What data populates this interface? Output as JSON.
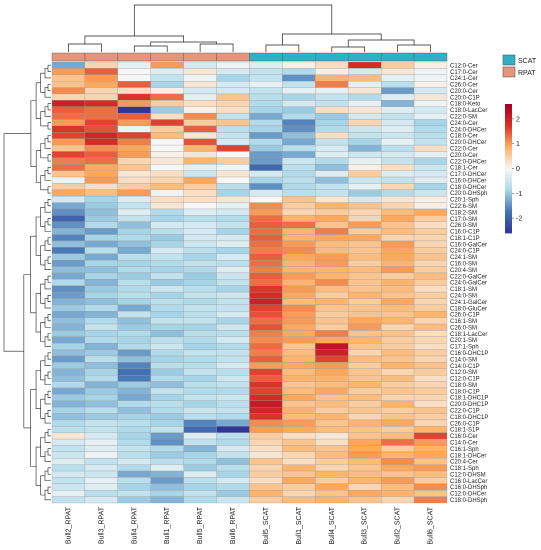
{
  "chart_data": {
    "type": "heatmap",
    "columns": [
      "Bull2_RPAT",
      "Bull3_RPAT",
      "Bull4_RPAT",
      "Bull1_RPAT",
      "Bull5_RPAT",
      "Bull6_RPAT",
      "Bull5_SCAT",
      "Bull1_SCAT",
      "Bull4_SCAT",
      "Bull3_SCAT",
      "Bull2_SCAT",
      "Bull6_SCAT"
    ],
    "column_groups": [
      "RPAT",
      "RPAT",
      "RPAT",
      "RPAT",
      "RPAT",
      "RPAT",
      "SCAT",
      "SCAT",
      "SCAT",
      "SCAT",
      "SCAT",
      "SCAT"
    ],
    "rows": [
      "C12:0-Cer",
      "C17:0-Cer",
      "C24:1-Cer",
      "C26:0-Cer",
      "C20:0-Cer",
      "C20:0-C1P",
      "C18:0-Keto",
      "C18:0-LacCer",
      "C22:0-SM",
      "C24:0-Cer",
      "C24:0-DHCer",
      "C18:0-Cer",
      "C20:0-DHCer",
      "C22:0-Cer",
      "C20:0-Cer",
      "C22:0-DHCer",
      "C18:1-Cer",
      "C17:0-DHCer",
      "C16:0-DHCer",
      "C18:0-DHCer",
      "C20:0-DHSph",
      "C20:1-Sph",
      "C22:6-SM",
      "C18:2-SM",
      "C17:0-SM",
      "C26:0-SM",
      "C16:0-C1P",
      "C18:1-C1P",
      "C16:0-GalCer",
      "C24:0-C1P",
      "C24:1-SM",
      "C16:0-SM",
      "C20:4-SM",
      "C22:0-GalCer",
      "C24:0-GalCer",
      "C18:1-SM",
      "C24:0-SM",
      "C24:1-GalCer",
      "C18:0-GluCer",
      "C26:0-C1P",
      "C16:1-SM",
      "C26:0-SM",
      "C18:1-LacCer",
      "C20:1-SM",
      "C17:1-Sph",
      "C16:0-DHC1P",
      "C14:0-SM",
      "C14:0-C1P",
      "C12:0-SM",
      "C12:0-C1P",
      "C18:0-SM",
      "C18:0-C1P",
      "C18:1-DHC1P",
      "C20:0-DHC1P",
      "C22:0-C1P",
      "C18:0-DHC1P",
      "C26:0-C1P",
      "C18:1-S1P",
      "C16:0-Cer",
      "C14:0-Cer",
      "C16:1-Sph",
      "C18:1-DHCer",
      "C20:4-Cer",
      "C18:1-Sph",
      "C12:0-DHSM",
      "C16:0-LacCer",
      "C16:0-DHSph",
      "C12:0-DHCer",
      "C18:0-DHSph"
    ],
    "values": [
      [
        -1.3,
        0.4,
        -0.2,
        1.0,
        -0.4,
        -0.1,
        -0.3,
        0.1,
        0.3,
        1.8,
        0.5,
        0.1
      ],
      [
        1.0,
        1.4,
        0.0,
        -0.3,
        0.2,
        -0.4,
        -0.6,
        -0.8,
        0.1,
        -0.4,
        0.2,
        -0.1
      ],
      [
        0.6,
        1.0,
        0.0,
        -0.6,
        -0.1,
        -0.9,
        -0.6,
        -1.5,
        0.8,
        0.7,
        -0.2,
        -0.1
      ],
      [
        0.6,
        0.9,
        1.4,
        -0.9,
        0.2,
        -0.4,
        -0.2,
        -0.6,
        1.2,
        -0.2,
        -0.7,
        0.1
      ],
      [
        1.1,
        0.4,
        0.3,
        0.1,
        -0.4,
        -0.4,
        -0.6,
        -0.2,
        -0.2,
        0.2,
        -1.4,
        -0.4
      ],
      [
        0.4,
        0.4,
        1.7,
        1.3,
        -0.2,
        0.6,
        -0.7,
        -0.9,
        -0.6,
        -0.8,
        -0.3,
        0.2
      ],
      [
        2.0,
        1.8,
        1.0,
        0.5,
        0.3,
        0.4,
        -0.8,
        -0.4,
        -0.6,
        -0.2,
        -1.2,
        -0.1
      ],
      [
        1.4,
        1.3,
        -2.6,
        -1.0,
        0.1,
        0.3,
        -0.9,
        -1.0,
        0.3,
        0.2,
        -0.3,
        -0.4
      ],
      [
        1.3,
        1.3,
        1.4,
        0.3,
        1.1,
        -0.6,
        -1.3,
        -0.8,
        -1.0,
        -0.4,
        -0.6,
        -0.2
      ],
      [
        1.0,
        1.6,
        1.0,
        1.6,
        0.5,
        0.6,
        -0.8,
        -1.6,
        -0.9,
        0.4,
        -0.4,
        -0.9
      ],
      [
        1.7,
        1.5,
        -0.1,
        0.5,
        1.4,
        -0.7,
        -0.9,
        -1.5,
        -0.8,
        -0.5,
        -0.3,
        -0.8
      ],
      [
        1.6,
        1.9,
        1.6,
        0.7,
        0.2,
        -0.6,
        -1.4,
        -1.1,
        0.3,
        -0.6,
        -0.5,
        -0.7
      ],
      [
        1.0,
        1.8,
        1.2,
        0.0,
        1.5,
        -0.4,
        -0.8,
        -1.3,
        -0.6,
        -0.9,
        -0.2,
        -0.6
      ],
      [
        0.6,
        1.1,
        0.9,
        0.0,
        0.8,
        1.6,
        -1.0,
        -0.7,
        -0.4,
        -1.2,
        -0.7,
        0.3
      ],
      [
        1.6,
        1.4,
        1.0,
        0.1,
        0.2,
        0.0,
        -1.4,
        -1.3,
        -0.3,
        -0.5,
        -0.4,
        -0.2
      ],
      [
        1.2,
        1.3,
        0.4,
        0.2,
        0.8,
        0.5,
        -1.4,
        -0.5,
        -0.8,
        -0.2,
        -0.6,
        -0.9
      ],
      [
        1.3,
        0.9,
        0.6,
        0.0,
        -0.2,
        -0.1,
        -1.9,
        -0.7,
        -1.1,
        0.1,
        0.3,
        -0.5
      ],
      [
        0.6,
        0.9,
        0.2,
        0.3,
        -0.5,
        0.2,
        -0.4,
        -0.8,
        -0.3,
        0.5,
        -0.3,
        -0.4
      ],
      [
        -0.1,
        1.0,
        0.3,
        0.4,
        0.9,
        0.0,
        -0.9,
        -0.7,
        -1.1,
        -0.5,
        -0.6,
        -0.3
      ],
      [
        0.5,
        0.3,
        0.5,
        0.7,
        0.5,
        -0.7,
        -1.5,
        -0.8,
        -0.6,
        -0.2,
        0.4,
        -0.9
      ],
      [
        0.9,
        0.7,
        1.0,
        -0.1,
        0.3,
        -0.9,
        -0.4,
        -0.7,
        -0.6,
        -1.0,
        -0.8,
        -0.5
      ],
      [
        -0.4,
        -0.9,
        -0.3,
        0.3,
        0.3,
        0.2,
        0.0,
        0.6,
        0.2,
        -0.4,
        0.2,
        0.1
      ],
      [
        -1.3,
        -1.0,
        -0.6,
        0.2,
        0.0,
        -0.2,
        1.1,
        0.5,
        0.8,
        0.6,
        0.4,
        0.1
      ],
      [
        -1.5,
        -1.1,
        -0.3,
        -0.8,
        -0.3,
        -0.4,
        1.0,
        0.4,
        0.5,
        0.4,
        0.7,
        0.9
      ],
      [
        -2.0,
        -1.0,
        -0.6,
        -0.9,
        -0.7,
        -0.8,
        1.3,
        0.8,
        0.9,
        0.4,
        0.9,
        0.5
      ],
      [
        -1.5,
        -0.8,
        -1.1,
        -0.4,
        -0.4,
        -0.6,
        1.4,
        1.3,
        0.6,
        1.0,
        0.6,
        0.3
      ],
      [
        -1.2,
        -1.4,
        -0.9,
        -0.7,
        -0.4,
        -0.9,
        1.3,
        0.8,
        1.2,
        0.5,
        0.7,
        0.5
      ],
      [
        -1.6,
        -0.9,
        -0.8,
        -1.0,
        -0.4,
        -0.4,
        1.4,
        0.8,
        0.9,
        0.9,
        0.4,
        0.4
      ],
      [
        -1.1,
        -1.3,
        -1.1,
        -0.9,
        -0.5,
        -0.3,
        1.3,
        1.0,
        0.7,
        0.6,
        1.0,
        0.4
      ],
      [
        -1.7,
        -0.7,
        -1.3,
        -0.4,
        -0.7,
        -0.9,
        1.2,
        1.1,
        0.7,
        0.6,
        0.9,
        0.5
      ],
      [
        -1.0,
        -1.3,
        -0.7,
        -0.6,
        -0.9,
        -0.4,
        1.4,
        0.9,
        1.0,
        0.7,
        0.9,
        0.6
      ],
      [
        -1.4,
        -0.9,
        -0.9,
        -0.8,
        -0.6,
        -0.7,
        1.3,
        0.8,
        1.0,
        0.5,
        0.8,
        0.4
      ],
      [
        -1.1,
        -1.1,
        -0.8,
        -0.9,
        -0.8,
        -0.3,
        1.2,
        0.8,
        0.8,
        0.7,
        1.0,
        0.5
      ],
      [
        -1.3,
        -0.9,
        -1.0,
        -0.6,
        -1.0,
        -0.5,
        1.4,
        1.0,
        0.8,
        0.6,
        0.5,
        0.7
      ],
      [
        -0.8,
        -1.2,
        -0.7,
        -1.0,
        -0.9,
        -0.6,
        1.3,
        0.8,
        1.1,
        0.6,
        0.8,
        0.5
      ],
      [
        -1.5,
        -1.0,
        -0.8,
        -0.5,
        -0.7,
        -0.9,
        1.7,
        1.0,
        0.7,
        0.6,
        0.7,
        0.3
      ],
      [
        -1.4,
        -0.9,
        -0.7,
        -0.9,
        -0.6,
        -0.5,
        1.8,
        0.9,
        0.5,
        0.8,
        0.6,
        0.5
      ],
      [
        -1.2,
        -1.1,
        -0.9,
        -0.7,
        -0.8,
        -0.6,
        2.0,
        0.7,
        0.8,
        0.5,
        0.9,
        0.4
      ],
      [
        -1.0,
        -0.8,
        -1.3,
        -0.8,
        -0.6,
        -0.6,
        1.6,
        1.1,
        0.6,
        0.6,
        0.7,
        0.5
      ],
      [
        -1.3,
        -1.2,
        -0.6,
        -0.9,
        -0.7,
        -0.4,
        1.5,
        1.0,
        0.5,
        0.6,
        0.6,
        0.8
      ],
      [
        -1.1,
        -0.8,
        -1.1,
        -0.6,
        -0.6,
        -0.9,
        1.3,
        1.0,
        0.6,
        0.9,
        0.8,
        0.4
      ],
      [
        -1.2,
        -0.6,
        -1.0,
        -0.9,
        -0.9,
        -0.5,
        1.5,
        0.9,
        0.5,
        1.0,
        0.4,
        0.7
      ],
      [
        -1.0,
        -0.9,
        -0.8,
        -1.1,
        -0.7,
        -0.7,
        1.2,
        0.9,
        1.2,
        0.6,
        0.6,
        0.3
      ],
      [
        -1.3,
        -0.8,
        -0.9,
        -0.7,
        -0.8,
        -0.4,
        1.1,
        1.0,
        0.9,
        0.8,
        0.5,
        0.4
      ],
      [
        -0.9,
        -1.2,
        -0.8,
        -0.5,
        -0.9,
        -0.8,
        1.3,
        0.6,
        2.2,
        0.6,
        0.5,
        0.3
      ],
      [
        -1.1,
        -1.0,
        -1.4,
        -0.8,
        -0.6,
        -0.6,
        1.2,
        0.7,
        2.0,
        0.4,
        0.7,
        0.5
      ],
      [
        -1.4,
        -0.7,
        -1.1,
        -0.9,
        -0.8,
        -0.6,
        1.4,
        0.8,
        1.6,
        0.7,
        0.6,
        0.4
      ],
      [
        -1.0,
        -1.1,
        -1.6,
        -0.7,
        -0.7,
        -0.4,
        1.0,
        0.9,
        1.0,
        0.5,
        0.8,
        0.6
      ],
      [
        -1.2,
        -0.9,
        -1.8,
        -1.0,
        -0.6,
        -0.7,
        1.6,
        0.7,
        0.9,
        0.6,
        0.4,
        0.5
      ],
      [
        -1.1,
        -0.8,
        -1.7,
        -0.8,
        -0.9,
        -0.5,
        1.4,
        0.8,
        0.8,
        0.6,
        0.7,
        0.3
      ],
      [
        -0.8,
        -1.2,
        -1.0,
        -1.1,
        -0.7,
        -0.6,
        1.7,
        0.6,
        0.7,
        0.8,
        0.5,
        0.4
      ],
      [
        -1.3,
        -1.0,
        -1.2,
        -0.6,
        -0.8,
        -0.8,
        1.6,
        0.7,
        0.9,
        0.5,
        0.6,
        0.5
      ],
      [
        -1.0,
        -0.9,
        -1.3,
        -0.9,
        -0.6,
        -0.5,
        1.8,
        0.9,
        0.6,
        0.7,
        0.4,
        0.4
      ],
      [
        -1.2,
        -1.1,
        -0.8,
        -0.7,
        -0.9,
        -0.7,
        2.1,
        0.6,
        0.7,
        0.5,
        0.8,
        0.3
      ],
      [
        -0.9,
        -0.7,
        -1.1,
        -0.8,
        -0.5,
        -0.6,
        1.9,
        0.8,
        0.5,
        0.6,
        0.5,
        0.6
      ],
      [
        -1.1,
        -1.0,
        -0.9,
        -1.0,
        -0.7,
        -0.8,
        1.7,
        0.7,
        0.8,
        0.4,
        0.6,
        0.5
      ],
      [
        -0.8,
        -0.6,
        -0.7,
        -0.9,
        -1.6,
        -1.3,
        1.1,
        1.0,
        0.6,
        0.8,
        0.9,
        0.4
      ],
      [
        -0.7,
        -0.6,
        -0.8,
        -0.6,
        -1.9,
        -2.6,
        1.0,
        0.9,
        0.7,
        0.6,
        0.5,
        0.8
      ],
      [
        0.2,
        -0.4,
        -0.9,
        -1.4,
        -0.3,
        -0.7,
        0.5,
        0.3,
        0.2,
        0.6,
        0.7,
        1.6
      ],
      [
        -0.4,
        -0.2,
        -0.8,
        -1.5,
        -0.6,
        -0.8,
        0.4,
        0.6,
        0.3,
        0.9,
        1.3,
        1.0
      ],
      [
        -0.6,
        -0.3,
        -0.6,
        -0.8,
        -1.2,
        -0.4,
        0.3,
        0.7,
        0.6,
        0.9,
        0.5,
        0.8
      ],
      [
        -0.5,
        -0.1,
        -0.7,
        -1.0,
        -0.9,
        -0.6,
        0.2,
        0.4,
        0.7,
        1.0,
        0.8,
        0.9
      ],
      [
        -0.3,
        -0.6,
        -0.4,
        -0.7,
        -0.8,
        -1.1,
        0.6,
        0.3,
        0.5,
        0.7,
        1.1,
        0.6
      ],
      [
        -0.7,
        -0.4,
        -0.8,
        -0.3,
        -1.0,
        -0.7,
        0.4,
        0.8,
        0.4,
        0.6,
        0.9,
        1.0
      ],
      [
        -0.4,
        -0.5,
        -1.3,
        -1.2,
        -0.3,
        -0.9,
        0.5,
        0.6,
        0.8,
        0.7,
        0.6,
        0.7
      ],
      [
        -0.6,
        -0.2,
        -0.7,
        -1.4,
        -0.7,
        -0.4,
        0.3,
        0.9,
        0.5,
        0.8,
        1.0,
        0.5
      ],
      [
        -0.5,
        -0.3,
        -0.9,
        -1.1,
        -0.9,
        -0.8,
        0.6,
        0.5,
        0.9,
        0.4,
        0.7,
        1.1
      ],
      [
        -0.2,
        -0.7,
        -0.6,
        -0.9,
        -0.6,
        -1.0,
        0.8,
        0.4,
        0.6,
        0.9,
        0.8,
        0.6
      ],
      [
        -0.6,
        -0.4,
        -1.0,
        -1.2,
        -0.8,
        -0.5,
        0.5,
        0.7,
        0.8,
        0.6,
        0.4,
        1.2
      ]
    ],
    "colorbar": {
      "min": -2.6,
      "max": 2.6,
      "ticks": [
        -2,
        -1,
        0,
        1,
        2
      ]
    },
    "color_stops": [
      "#313695",
      "#4575b4",
      "#abd9e9",
      "#f7f7f7",
      "#fdae61",
      "#d73027",
      "#a50026"
    ],
    "legend": {
      "placement": "top-right",
      "items": [
        {
          "label": "SCAT",
          "color": "#2fb0c5"
        },
        {
          "label": "RPAT",
          "color": "#e5967a"
        }
      ]
    },
    "grid": true
  }
}
